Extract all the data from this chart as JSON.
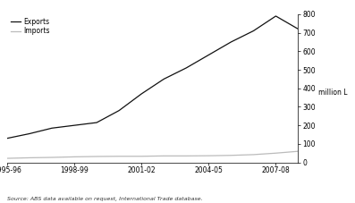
{
  "x_labels": [
    "1995-96",
    "1998-99",
    "2001-02",
    "2004-05",
    "2007-08"
  ],
  "x_values": [
    0,
    1,
    2,
    3,
    4,
    5,
    6,
    7,
    8,
    9,
    10,
    11,
    12,
    13
  ],
  "exports": [
    130,
    155,
    185,
    200,
    215,
    280,
    370,
    450,
    510,
    580,
    650,
    710,
    790,
    720
  ],
  "imports": [
    22,
    25,
    27,
    30,
    32,
    33,
    33,
    35,
    35,
    36,
    38,
    42,
    50,
    60
  ],
  "exports_color": "#111111",
  "imports_color": "#bbbbbb",
  "ylim": [
    0,
    800
  ],
  "yticks": [
    0,
    100,
    200,
    300,
    400,
    500,
    600,
    700,
    800
  ],
  "ylabel": "million L",
  "legend_exports": "Exports",
  "legend_imports": "Imports",
  "source_text": "Source: ABS data available on request, International Trade database.",
  "bg_color": "#ffffff",
  "line_width": 0.9
}
